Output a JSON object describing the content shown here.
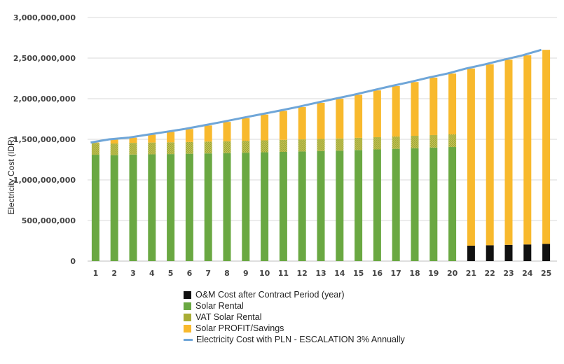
{
  "chart_data": {
    "type": "bar",
    "stacked": true,
    "ylabel": "Electricity Cost (IDR)",
    "xlabel": "",
    "ylim": [
      0,
      3000000000
    ],
    "yticks": [
      0,
      500000000,
      1000000000,
      1500000000,
      2000000000,
      2500000000,
      3000000000
    ],
    "ytick_labels": [
      "0",
      "500,000,000",
      "1,000,000,000",
      "1,500,000,000",
      "2,000,000,000",
      "2,500,000,000",
      "3,000,000,000"
    ],
    "grid": true,
    "legend_position": "bottom",
    "categories": [
      "1",
      "2",
      "3",
      "4",
      "5",
      "6",
      "7",
      "8",
      "9",
      "10",
      "11",
      "12",
      "13",
      "14",
      "15",
      "16",
      "17",
      "18",
      "19",
      "20",
      "21",
      "22",
      "23",
      "24",
      "25"
    ],
    "series": [
      {
        "name": "O&M Cost after Contract Period (year)",
        "color": "#111111",
        "values": [
          0,
          0,
          0,
          0,
          0,
          0,
          0,
          0,
          0,
          0,
          0,
          0,
          0,
          0,
          0,
          0,
          0,
          0,
          0,
          0,
          190000000,
          195000000,
          200000000,
          205000000,
          212000000
        ]
      },
      {
        "name": "Solar Rental",
        "color": "#6aa842",
        "values": [
          1310000000,
          1305000000,
          1312000000,
          1315000000,
          1318000000,
          1322000000,
          1326000000,
          1330000000,
          1335000000,
          1340000000,
          1345000000,
          1350000000,
          1355000000,
          1360000000,
          1368000000,
          1375000000,
          1382000000,
          1390000000,
          1398000000,
          1405000000,
          0,
          0,
          0,
          0,
          0
        ]
      },
      {
        "name": "VAT Solar Rental",
        "color": "#a9ad35",
        "values": [
          144000000,
          143000000,
          144000000,
          145000000,
          145000000,
          145000000,
          146000000,
          146000000,
          147000000,
          147000000,
          148000000,
          149000000,
          149000000,
          150000000,
          150000000,
          151000000,
          152000000,
          153000000,
          154000000,
          155000000,
          0,
          0,
          0,
          0,
          0
        ]
      },
      {
        "name": "Solar PROFIT/Savings",
        "color": "#f8b92d",
        "values": [
          6000000,
          52000000,
          64000000,
          96000000,
          128000000,
          160000000,
          198000000,
          238000000,
          278000000,
          318000000,
          357000000,
          398000000,
          445000000,
          489000000,
          530000000,
          576000000,
          621000000,
          662000000,
          708000000,
          750000000,
          2182000000,
          2228000000,
          2280000000,
          2329000000,
          2390000000
        ]
      }
    ],
    "line": {
      "name": "Electricity Cost with PLN - ESCALATION 3% Annually",
      "color": "#6fa6d8",
      "values": [
        1460000000,
        1500000000,
        1520000000,
        1556000000,
        1591000000,
        1627000000,
        1670000000,
        1714000000,
        1760000000,
        1805000000,
        1850000000,
        1897000000,
        1949000000,
        1999000000,
        2048000000,
        2102000000,
        2155000000,
        2205000000,
        2260000000,
        2310000000,
        2372000000,
        2423000000,
        2480000000,
        2534000000,
        2602000000
      ]
    }
  }
}
